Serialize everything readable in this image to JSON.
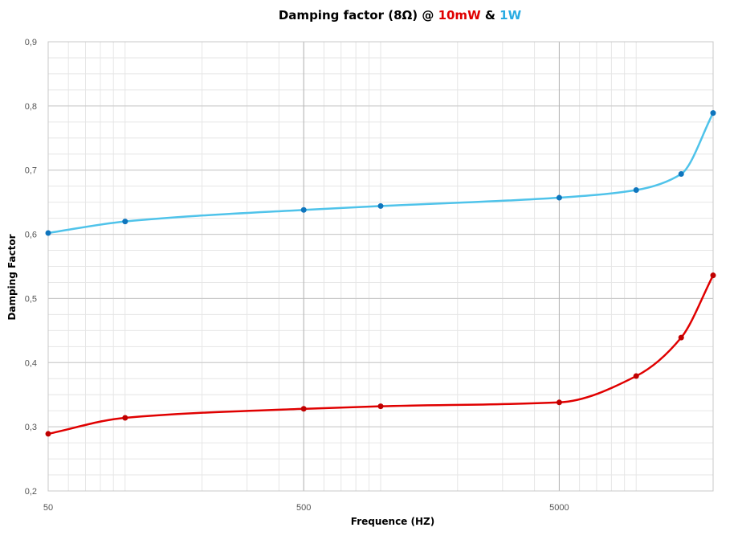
{
  "chart_data": {
    "type": "line",
    "title_parts": [
      {
        "text": "Damping factor (8Ω) @ ",
        "color": "#000000"
      },
      {
        "text": "10mW",
        "color": "#e00000"
      },
      {
        "text": " & ",
        "color": "#000000"
      },
      {
        "text": "1W",
        "color": "#29abe2"
      }
    ],
    "xlabel": "Frequence (HZ)",
    "ylabel": "Damping Factor",
    "x_scale": "log",
    "xlim": [
      50,
      20000
    ],
    "ylim": [
      0.2,
      0.9
    ],
    "x_ticks": [
      {
        "value": 50,
        "label": "50"
      },
      {
        "value": 500,
        "label": "500"
      },
      {
        "value": 5000,
        "label": "5000"
      }
    ],
    "y_ticks": [
      {
        "value": 0.2,
        "label": "0,2"
      },
      {
        "value": 0.3,
        "label": "0,3"
      },
      {
        "value": 0.4,
        "label": "0,4"
      },
      {
        "value": 0.5,
        "label": "0,5"
      },
      {
        "value": 0.6,
        "label": "0,6"
      },
      {
        "value": 0.7,
        "label": "0,7"
      },
      {
        "value": 0.8,
        "label": "0,8"
      },
      {
        "value": 0.9,
        "label": "0,9"
      }
    ],
    "grid": true,
    "series": [
      {
        "key": "1w",
        "line_color": "#4fc3ea",
        "marker_color": "#0f75bd",
        "x": [
          50,
          100,
          500,
          1000,
          5000,
          10000,
          15000,
          20000
        ],
        "values": [
          0.602,
          0.62,
          0.638,
          0.644,
          0.657,
          0.669,
          0.694,
          0.789
        ]
      },
      {
        "key": "10mw",
        "line_color": "#e00000",
        "marker_color": "#c00000",
        "x": [
          50,
          100,
          500,
          1000,
          5000,
          10000,
          15000,
          20000
        ],
        "values": [
          0.289,
          0.314,
          0.328,
          0.332,
          0.338,
          0.379,
          0.439,
          0.536
        ]
      }
    ]
  }
}
